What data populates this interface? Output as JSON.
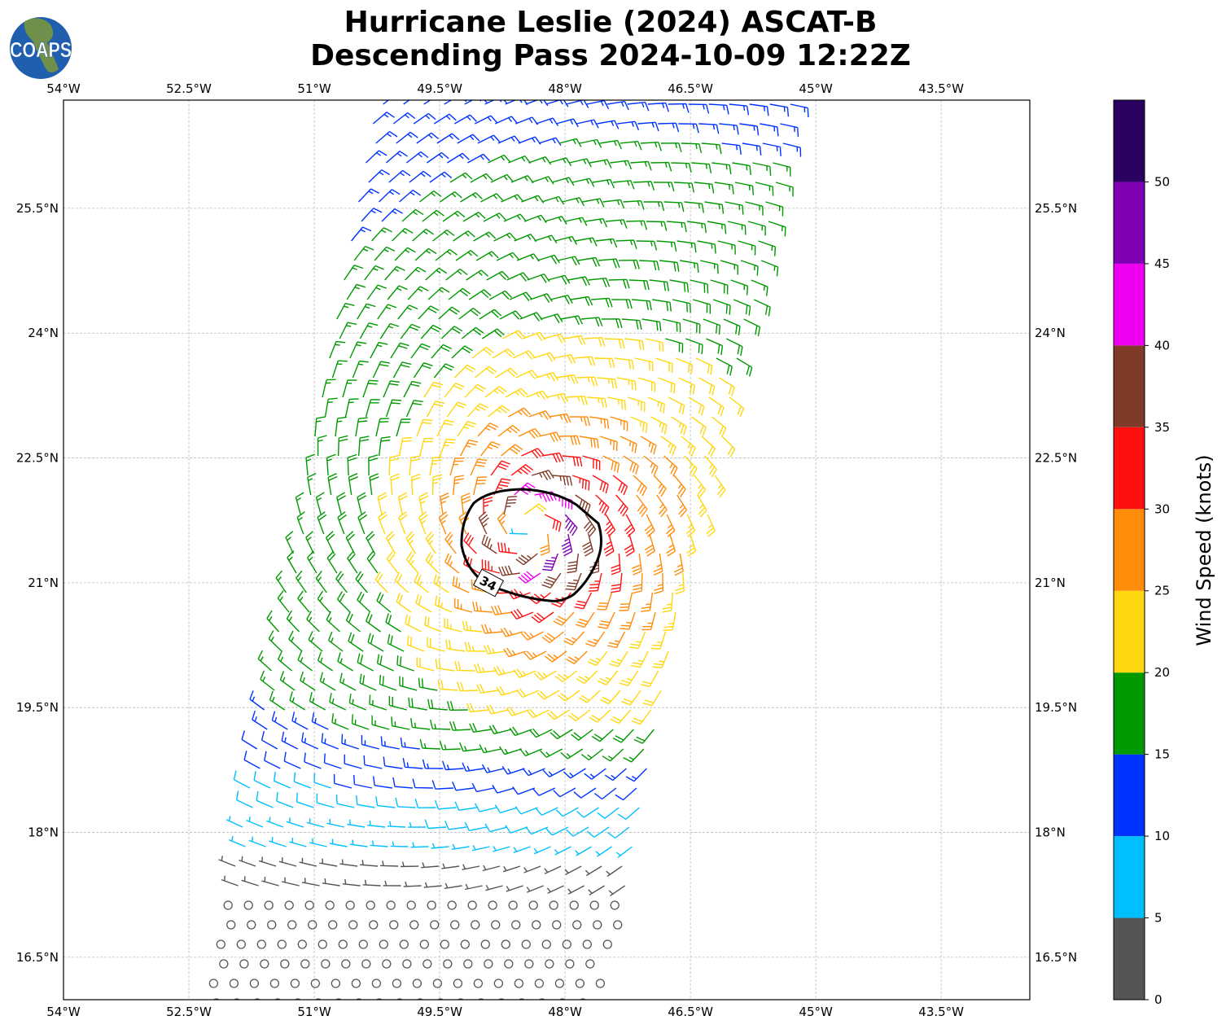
{
  "chart_data": {
    "type": "wind-barb-map",
    "title": "Hurricane Leslie (2024) ASCAT-B",
    "subtitle": "Descending Pass 2024-10-09 12:22Z",
    "logo_text": "COAPS",
    "lon_ticks": [
      "54°W",
      "52.5°W",
      "51°W",
      "49.5°W",
      "48°W",
      "46.5°W",
      "45°W",
      "43.5°W"
    ],
    "lon_values": [
      -54,
      -52.5,
      -51,
      -49.5,
      -48,
      -46.5,
      -45,
      -43.5
    ],
    "lat_ticks": [
      "25.5°N",
      "24°N",
      "22.5°N",
      "21°N",
      "19.5°N",
      "18°N",
      "16.5°N"
    ],
    "lat_values": [
      25.5,
      24,
      22.5,
      21,
      19.5,
      18,
      16.5
    ],
    "lon_range": [
      -54,
      -42.44
    ],
    "lat_range": [
      15.99,
      26.8
    ],
    "grid": true,
    "storm_center": {
      "lon": -48.43,
      "lat": 21.64
    },
    "contour": {
      "level": 34,
      "label": "34"
    },
    "colorbar": {
      "label": "Wind Speed (knots)",
      "levels": [
        0,
        5,
        10,
        15,
        20,
        25,
        30,
        35,
        40,
        45,
        50,
        55
      ],
      "tick_labels": [
        "0",
        "5",
        "10",
        "15",
        "20",
        "25",
        "30",
        "35",
        "40",
        "45",
        "50"
      ],
      "colors": [
        "#555555",
        "#00bfff",
        "#0033ff",
        "#009900",
        "#ffd70f",
        "#ff8c0a",
        "#ff1010",
        "#803a28",
        "#f000f0",
        "#8000b4",
        "#2a0060"
      ]
    }
  }
}
